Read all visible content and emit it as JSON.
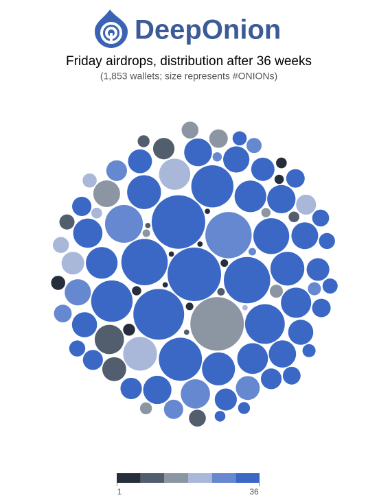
{
  "header": {
    "brand": "DeepOnion"
  },
  "chart_data": {
    "type": "packed-bubble",
    "title": "Friday airdrops, distribution after 36 weeks",
    "subtitle": "(1,853 wallets; size represents #ONIONs)",
    "color_scale": [
      "#262e3c",
      "#525d6e",
      "#8b96a2",
      "#a9b7d9",
      "#6688d0",
      "#3a68c4"
    ],
    "color_range": [
      1,
      36
    ],
    "weeks": [
      36,
      36,
      18,
      36,
      27,
      36,
      36,
      36,
      36,
      32,
      36,
      30,
      36,
      36,
      24,
      36,
      36,
      32,
      36,
      20,
      36,
      36,
      12,
      36,
      28,
      36,
      36,
      32,
      36,
      18,
      36,
      36,
      26,
      36,
      36,
      12,
      36,
      30,
      36,
      22,
      36,
      36,
      8,
      36,
      30,
      36,
      20,
      36,
      36,
      26,
      36,
      14,
      36,
      30,
      36,
      18,
      36,
      8,
      36,
      24,
      36,
      12,
      30,
      36,
      6,
      20,
      36,
      14,
      28,
      36,
      4,
      18,
      10,
      32,
      2,
      22,
      8,
      36,
      3,
      14,
      26,
      1,
      6,
      18,
      30,
      2,
      10,
      1,
      4,
      12,
      20,
      1,
      3,
      8
    ],
    "onions": [
      100,
      100,
      100,
      90,
      75,
      75,
      75,
      65,
      62,
      60,
      55,
      50,
      45,
      40,
      40,
      40,
      38,
      35,
      35,
      34,
      33,
      32,
      30,
      30,
      30,
      28,
      28,
      27,
      26,
      25,
      25,
      24,
      24,
      22,
      22,
      20,
      20,
      20,
      19,
      18,
      18,
      17,
      16,
      16,
      15,
      15,
      14,
      14,
      13,
      13,
      12,
      12,
      12,
      11,
      11,
      10,
      10,
      10,
      9,
      9,
      9,
      8,
      8,
      8,
      7,
      7,
      7,
      6,
      6,
      6,
      5,
      5,
      5,
      5,
      4,
      4,
      4,
      4,
      3,
      3,
      3,
      3,
      2,
      2,
      2,
      2,
      2,
      1,
      1,
      1,
      1,
      1,
      1,
      1
    ]
  }
}
